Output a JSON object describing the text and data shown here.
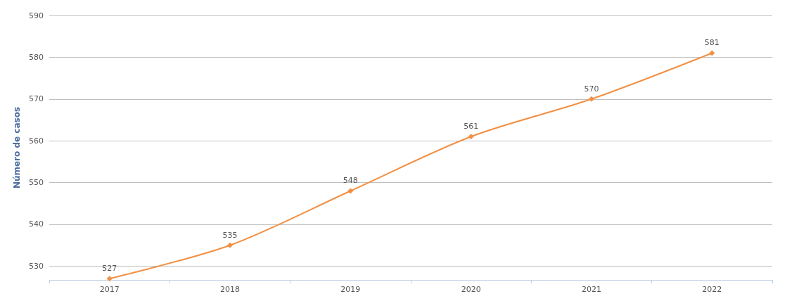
{
  "chart_data": {
    "type": "line",
    "ylabel": "Número de casos",
    "categories": [
      "2017",
      "2018",
      "2019",
      "2020",
      "2021",
      "2022"
    ],
    "series": [
      {
        "color": "#f28f43",
        "values": [
          527,
          535,
          548,
          561,
          570,
          581
        ]
      }
    ],
    "ylim": [
      526.7,
      590
    ],
    "yticks": [
      530,
      540,
      550,
      560,
      570,
      580,
      590
    ],
    "grid": "y",
    "marker": "diamond",
    "line_style": "solid",
    "data_labels": true
  }
}
